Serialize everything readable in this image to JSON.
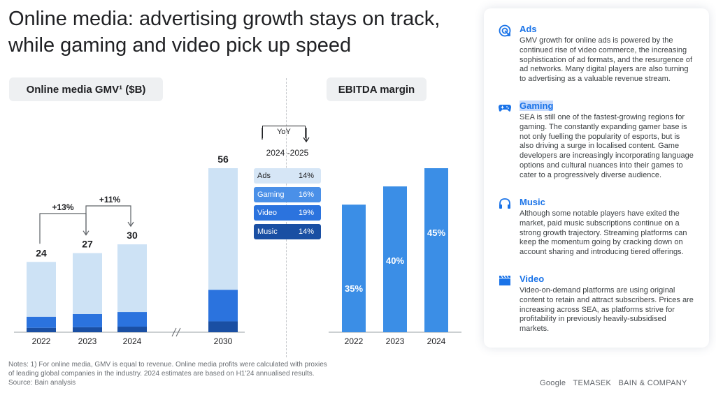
{
  "title": "Online media: advertising growth stays on track, while gaming and video pick up speed",
  "gmv_label": "Online media GMV¹ ($B)",
  "ebitda_label": "EBITDA margin",
  "chart_data": [
    {
      "type": "bar",
      "stacked": true,
      "title": "Online media GMV¹ ($B)",
      "categories": [
        "2022",
        "2023",
        "2024",
        "2030"
      ],
      "totals": [
        24,
        27,
        30,
        56
      ],
      "growth_annotations": [
        {
          "from": "2022",
          "to": "2023",
          "label": "+13%"
        },
        {
          "from": "2023",
          "to": "2024",
          "label": "+11%"
        }
      ],
      "series": [
        {
          "name": "Music",
          "color": "#1a4fa3",
          "values": [
            1.5,
            1.7,
            1.9,
            3.7
          ]
        },
        {
          "name": "Video",
          "color": "#2b73de",
          "values": [
            3.8,
            4.5,
            5.0,
            10.8
          ]
        },
        {
          "name": "Gaming",
          "color": "#4a90e8",
          "values": [
            0,
            0,
            0,
            0
          ]
        },
        {
          "name": "Ads",
          "color": "#cde2f5",
          "values": [
            18.7,
            20.8,
            23.1,
            41.5
          ]
        }
      ],
      "axis_break_before": "2030"
    },
    {
      "type": "bar",
      "title": "EBITDA margin",
      "categories": [
        "2022",
        "2023",
        "2024"
      ],
      "values": [
        35,
        40,
        45
      ],
      "labels": [
        "35%",
        "40%",
        "45%"
      ]
    }
  ],
  "yoy": {
    "label": "YoY",
    "years": "2024 -2025",
    "rows": [
      {
        "name": "Ads",
        "value": "14%",
        "bg": "#d6e6f6",
        "fg": "#202124"
      },
      {
        "name": "Gaming",
        "value": "16%",
        "bg": "#4a90e8",
        "fg": "#ffffff"
      },
      {
        "name": "Video",
        "value": "19%",
        "bg": "#2b73de",
        "fg": "#ffffff"
      },
      {
        "name": "Music",
        "value": "14%",
        "bg": "#1a4fa3",
        "fg": "#ffffff"
      }
    ]
  },
  "notes": [
    "Notes: 1) For online media, GMV is equal to revenue. Online media profits were calculated with proxies",
    "of leading global companies in the industry. 2024 estimates are based on H1'24 annualised results.",
    "Source: Bain analysis"
  ],
  "panel": {
    "sections": [
      {
        "icon": "target-icon",
        "title": "Ads",
        "body": "GMV growth for online ads is powered by the continued rise of video commerce, the increasing sophistication of ad formats, and the resurgence of ad networks. Many digital players are also turning to advertising as a valuable revenue stream."
      },
      {
        "icon": "gamepad-icon",
        "title": "Gaming",
        "body": "SEA is still one of the fastest-growing regions for gaming. The constantly expanding gamer base is not only fuelling the popularity of esports, but is also driving a surge in localised content. Game developers are increasingly incorporating language options and cultural nuances into their games to cater to a progressively diverse audience."
      },
      {
        "icon": "headphones-icon",
        "title": "Music",
        "body": "Although some notable players have exited the market, paid music subscriptions continue on a strong growth trajectory. Streaming platforms can keep the momentum going by cracking down on account sharing and introducing tiered offerings."
      },
      {
        "icon": "clapperboard-icon",
        "title": "Video",
        "body": "Video-on-demand platforms are using original content to retain and attract subscribers. Prices are increasing across SEA, as platforms strive for profitability in previously heavily-subsidised markets."
      }
    ]
  },
  "logos": [
    "Google",
    "TEMASEK",
    "BAIN & COMPANY"
  ],
  "colors": {
    "accent": "#1a73e8",
    "ebitda_bar": "#3b8ee6"
  }
}
